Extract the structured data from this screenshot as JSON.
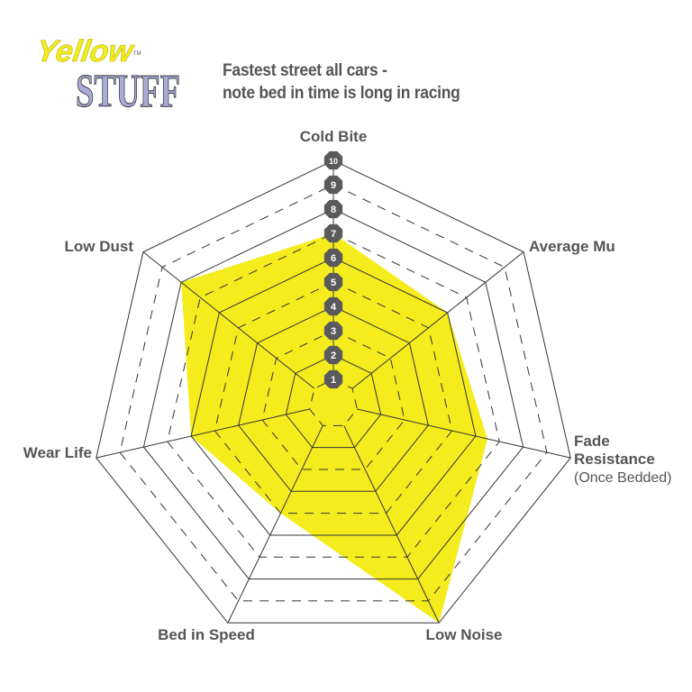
{
  "logo": {
    "line1": "Yellow",
    "line2": "STUFF",
    "tm": "TM",
    "colors": {
      "yellow": "#f5ec1e",
      "lavender": "#a9acd9"
    }
  },
  "title": {
    "line1": "Fastest street all cars -",
    "line2": "note bed in time is long in racing"
  },
  "chart_data": {
    "type": "radar",
    "axes": [
      {
        "label": "Cold Bite",
        "sub": ""
      },
      {
        "label": "Average Mu",
        "sub": ""
      },
      {
        "label": "Fade",
        "label2": "Resistance",
        "sub": "(Once Bedded)"
      },
      {
        "label": "Low Noise",
        "sub": ""
      },
      {
        "label": "Bed in Speed",
        "sub": ""
      },
      {
        "label": "Wear Life",
        "sub": ""
      },
      {
        "label": "Low Dust",
        "sub": ""
      }
    ],
    "values": [
      7,
      6,
      6.5,
      10,
      5,
      6,
      8
    ],
    "range": [
      0,
      10
    ],
    "ticks": [
      "1",
      "2",
      "3",
      "4",
      "5",
      "6",
      "7",
      "8",
      "9",
      "10"
    ],
    "grid": "solid on even levels, dashed on odd levels",
    "colors": {
      "fill": "#f5ec1e",
      "grid": "#333333",
      "badge": "#5a5a5c",
      "label": "#555555"
    }
  }
}
